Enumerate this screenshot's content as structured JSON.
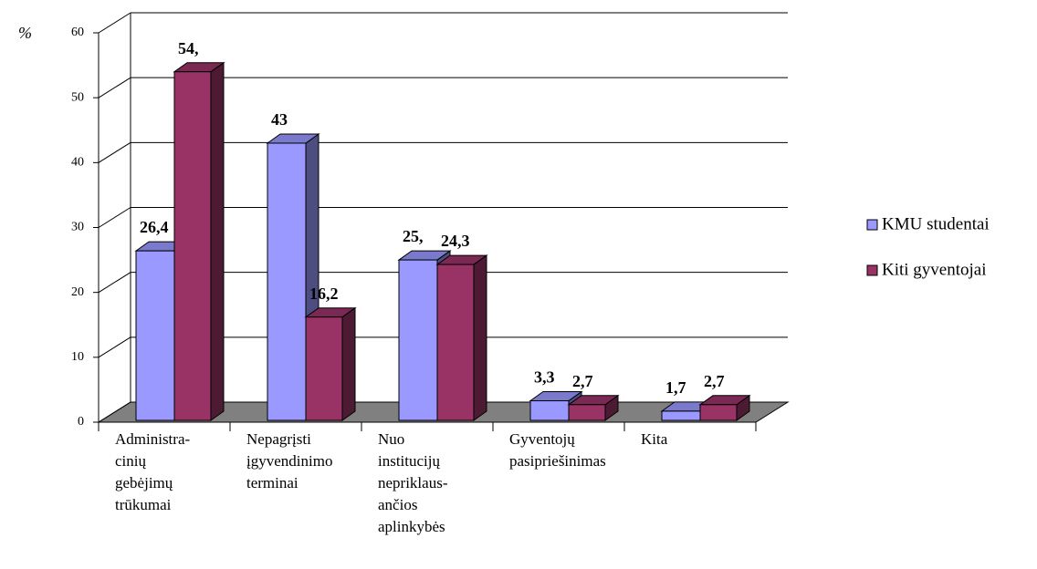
{
  "chart_data": {
    "type": "bar3d",
    "y_label": "%",
    "categories": [
      "Administra-\ncinių\ngebėjimų\ntrūkumai",
      "Nepagrįsti\nįgyvendinimo\nterminai",
      "Nuo\ninstitucijų\nnepriklaus-\nančios\naplinkybės",
      "Gyventojų\npasipriešinimas",
      "Kita"
    ],
    "series": [
      {
        "name": "KMU studentai",
        "color": "#9999ff",
        "values": [
          26.4,
          43,
          25,
          3.3,
          1.7
        ],
        "value_labels": [
          "26,4",
          "43",
          "25,",
          "3,3",
          "1,7"
        ]
      },
      {
        "name": "Kiti gyventojai",
        "color": "#993366",
        "values": [
          54,
          16.2,
          24.3,
          2.7,
          2.7
        ],
        "value_labels": [
          "54,",
          "16,2",
          "24,3",
          "2,7",
          "2,7"
        ]
      }
    ],
    "ylim": [
      0,
      60
    ],
    "yticks": [
      0,
      10,
      20,
      30,
      40,
      50,
      60
    ],
    "grid": true,
    "legend": "right"
  }
}
